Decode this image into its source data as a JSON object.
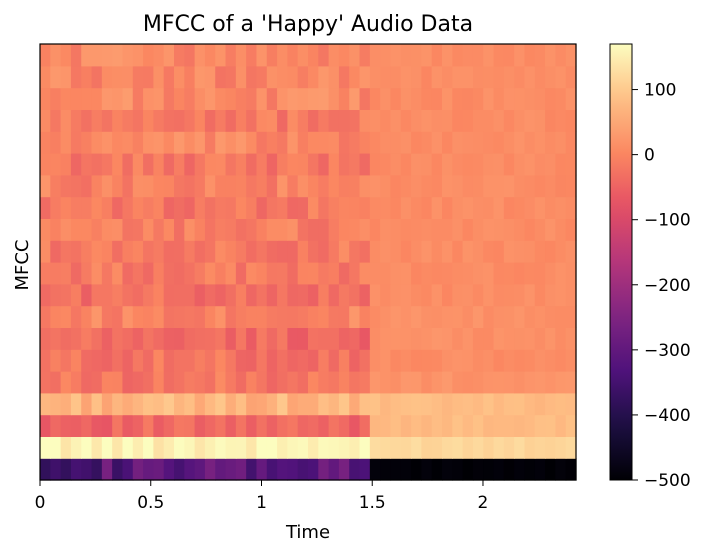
{
  "chart_data": {
    "type": "heatmap",
    "title": "MFCC of a 'Happy' Audio Data",
    "xlabel": "Time",
    "ylabel": "MFCC",
    "xlim": [
      0,
      2.42
    ],
    "x_ticks": [
      0,
      0.5,
      1,
      1.5,
      2
    ],
    "x_tick_labels": [
      "0",
      "0.5",
      "1",
      "1.5",
      "2"
    ],
    "n_coefficients": 20,
    "n_frames": 52,
    "colormap": "magma",
    "colorbar": {
      "range": [
        -500,
        170
      ],
      "ticks": [
        100,
        0,
        -100,
        -200,
        -300,
        -400,
        -500
      ],
      "tick_labels": [
        "100",
        "0",
        "−100",
        "−200",
        "−300",
        "−400",
        "−500"
      ]
    },
    "row_profiles": [
      {
        "coefficient": 1,
        "before_1_5": -320,
        "after_1_5": -495
      },
      {
        "coefficient": 2,
        "before_1_5": 160,
        "after_1_5": 120
      },
      {
        "coefficient": 3,
        "before_1_5": -45,
        "after_1_5": 80
      },
      {
        "coefficient": 4,
        "before_1_5": 70,
        "after_1_5": 80
      },
      {
        "coefficient": 5,
        "before_1_5": -20,
        "after_1_5": 20
      },
      {
        "coefficient": 6,
        "before_1_5": -25,
        "after_1_5": 10
      },
      {
        "coefficient": 7,
        "before_1_5": -40,
        "after_1_5": 15
      },
      {
        "coefficient": 8,
        "before_1_5": 0,
        "after_1_5": 15
      },
      {
        "coefficient": 9,
        "before_1_5": -30,
        "after_1_5": 10
      },
      {
        "coefficient": 10,
        "before_1_5": -15,
        "after_1_5": 10
      },
      {
        "coefficient": 11,
        "before_1_5": -15,
        "after_1_5": 10
      },
      {
        "coefficient": 12,
        "before_1_5": -10,
        "after_1_5": 10
      },
      {
        "coefficient": 13,
        "before_1_5": -20,
        "after_1_5": 10
      },
      {
        "coefficient": 14,
        "before_1_5": -5,
        "after_1_5": 10
      },
      {
        "coefficient": 15,
        "before_1_5": -20,
        "after_1_5": 10
      },
      {
        "coefficient": 16,
        "before_1_5": 0,
        "after_1_5": 10
      },
      {
        "coefficient": 17,
        "before_1_5": -15,
        "after_1_5": 10
      },
      {
        "coefficient": 18,
        "before_1_5": 5,
        "after_1_5": 10
      },
      {
        "coefficient": 19,
        "before_1_5": 0,
        "after_1_5": 10
      },
      {
        "coefficient": 20,
        "before_1_5": 5,
        "after_1_5": 10
      }
    ]
  }
}
